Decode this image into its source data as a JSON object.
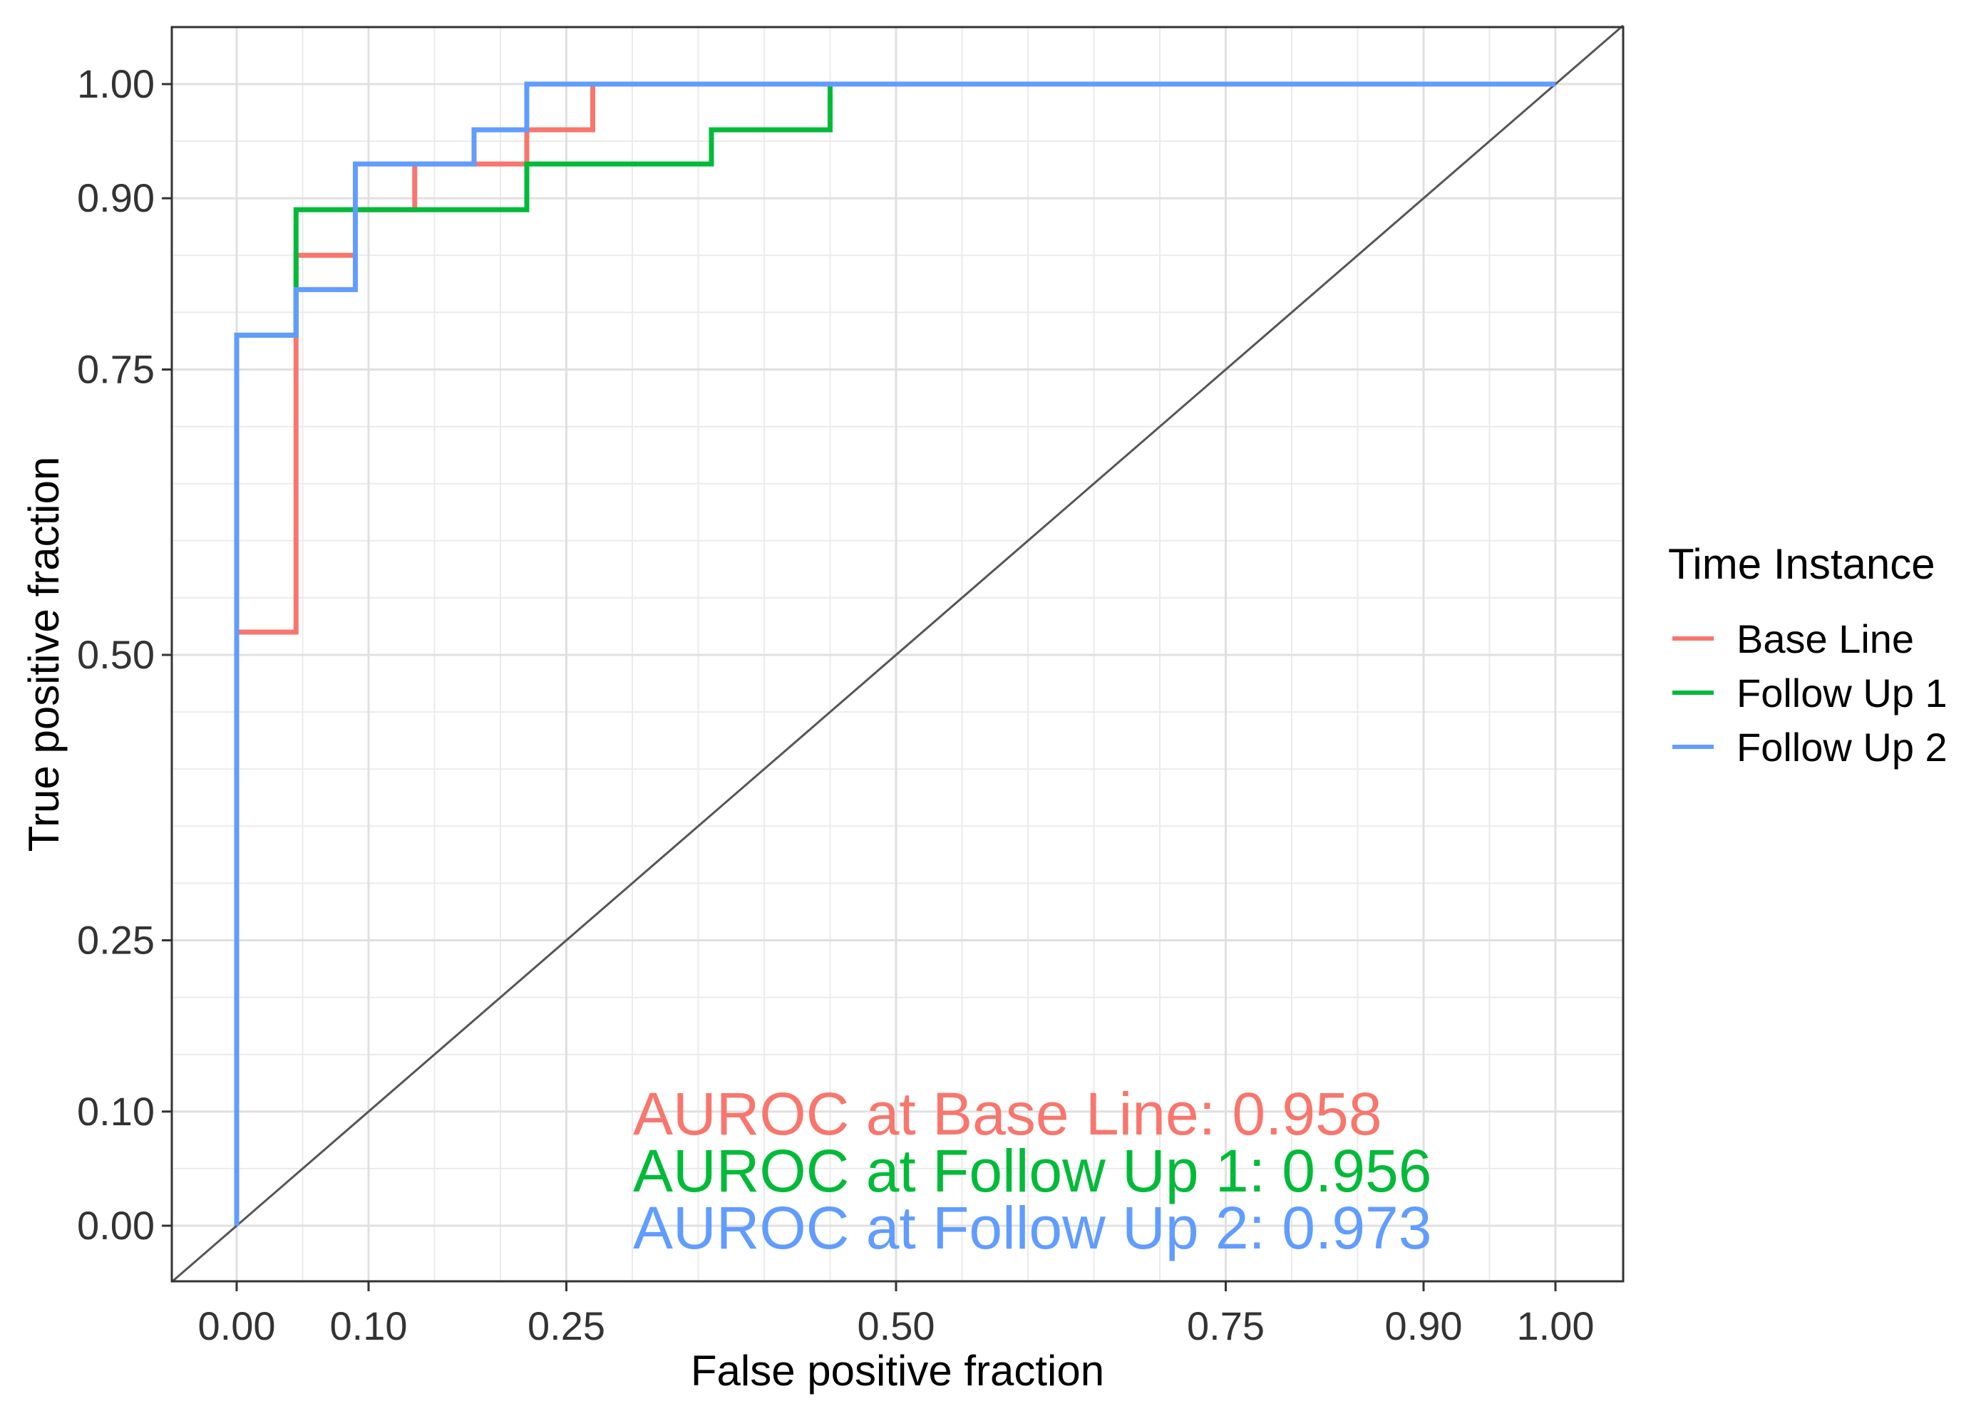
{
  "chart_data": {
    "type": "line",
    "title": "",
    "xlabel": "False positive fraction",
    "ylabel": "True positive fraction",
    "xlim": [
      -0.095,
      2.0
    ],
    "ylim": [
      -0.095,
      2.0
    ],
    "xticks": [
      0.0,
      0.1,
      0.25,
      0.5,
      0.75,
      0.9,
      1.0
    ],
    "xtick_labels": [
      "0.00",
      "0.10",
      "0.25",
      "0.50",
      "0.75",
      "0.90",
      "1.00"
    ],
    "yticks": [
      0.0,
      0.1,
      0.25,
      0.5,
      0.75,
      0.9,
      1.0
    ],
    "ytick_labels": [
      "0.00",
      "0.10",
      "0.25",
      "0.50",
      "0.75",
      "0.90",
      "1.00"
    ],
    "grid": true,
    "legend": {
      "title": "Time Instance",
      "position": "right"
    },
    "series": [
      {
        "name": "Base Line",
        "color": "#F8766D",
        "x": [
          0.0,
          0.0,
          0.045,
          0.045,
          0.045,
          0.045,
          0.09,
          0.09,
          0.135,
          0.135,
          0.22,
          0.22,
          0.27,
          0.27,
          1.0
        ],
        "y": [
          0.0,
          0.52,
          0.52,
          0.82,
          0.85,
          0.85,
          0.85,
          0.89,
          0.89,
          0.93,
          0.93,
          0.96,
          0.96,
          1.0,
          1.0
        ]
      },
      {
        "name": "Follow Up 1",
        "color": "#00BA38",
        "x": [
          0.0,
          0.0,
          0.045,
          0.045,
          0.22,
          0.22,
          0.36,
          0.36,
          0.45,
          0.45,
          1.0
        ],
        "y": [
          0.0,
          0.78,
          0.78,
          0.89,
          0.89,
          0.93,
          0.93,
          0.96,
          0.96,
          1.0,
          1.0
        ]
      },
      {
        "name": "Follow Up 2",
        "color": "#619CFF",
        "x": [
          0.0,
          0.0,
          0.045,
          0.045,
          0.09,
          0.09,
          0.18,
          0.18,
          0.22,
          0.22,
          1.0
        ],
        "y": [
          0.0,
          0.78,
          0.78,
          0.82,
          0.82,
          0.93,
          0.93,
          0.96,
          0.96,
          1.0,
          1.0
        ]
      }
    ],
    "reference_line": {
      "color": "#555555"
    },
    "annotations": [
      {
        "text": "AUROC at Base Line: 0.958",
        "color": "#F8766D"
      },
      {
        "text": "AUROC at Follow Up 1: 0.956",
        "color": "#00BA38"
      },
      {
        "text": "AUROC at Follow Up 2: 0.973",
        "color": "#619CFF"
      }
    ]
  }
}
